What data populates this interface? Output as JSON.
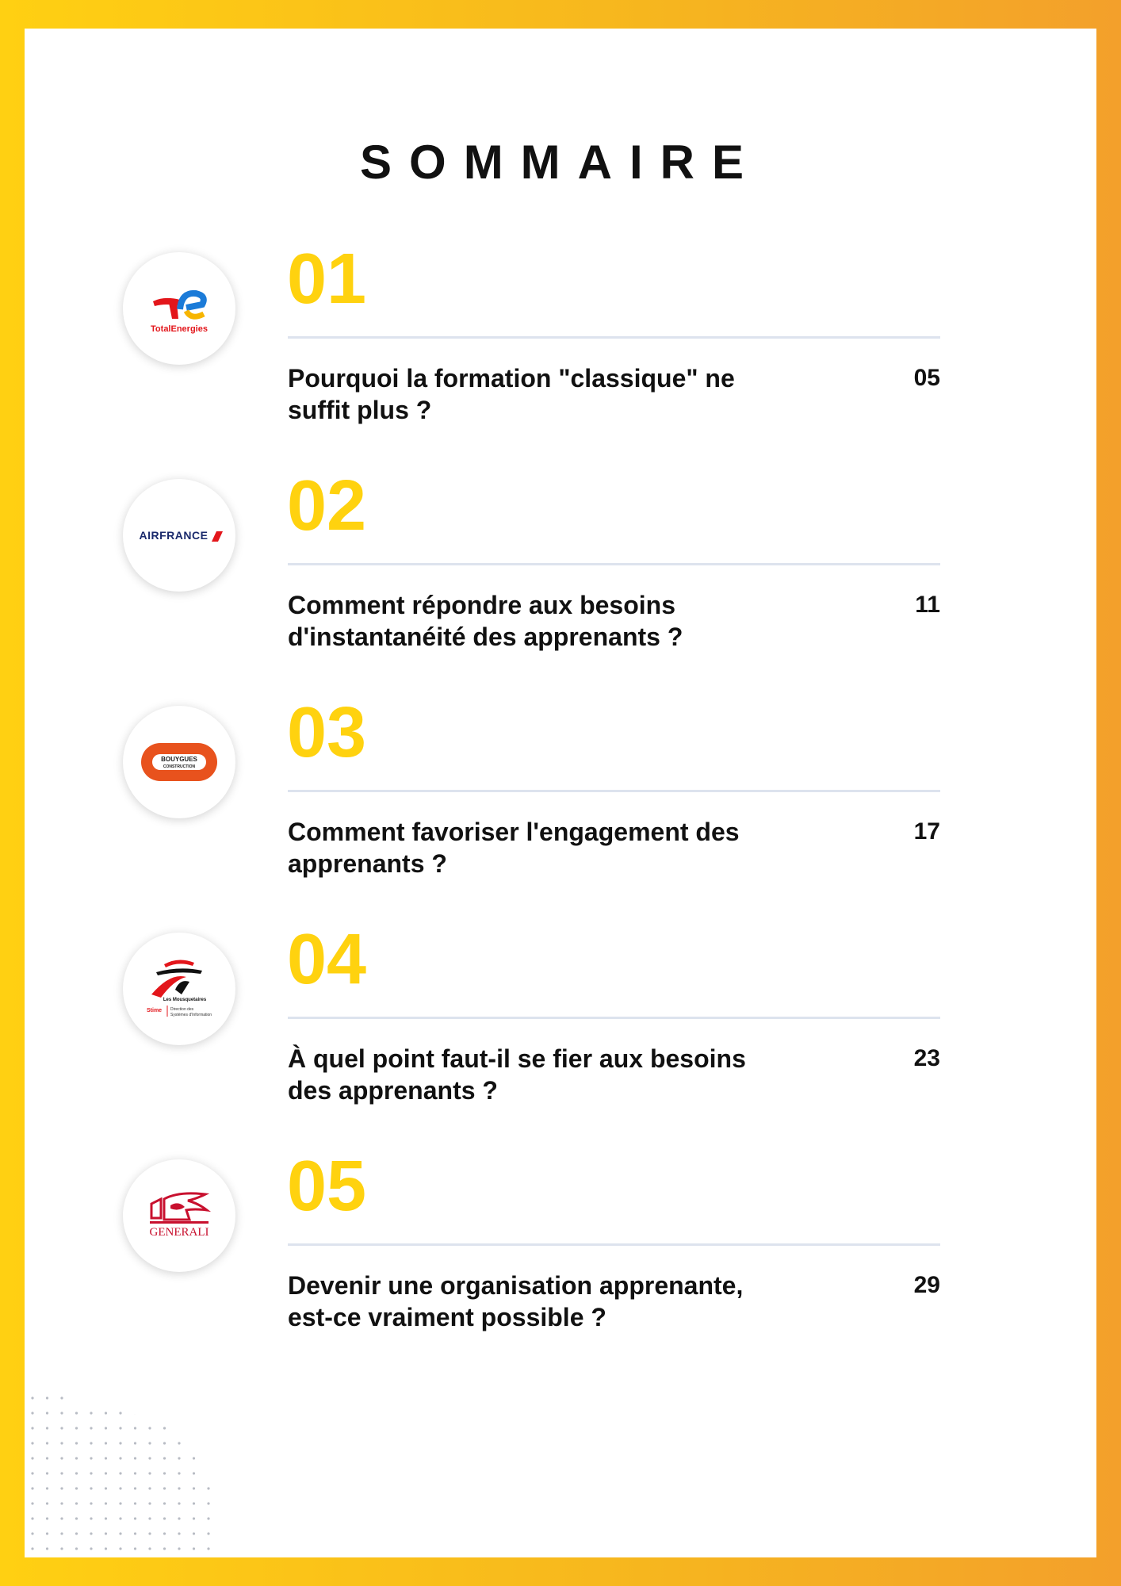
{
  "title": "SOMMAIRE",
  "items": [
    {
      "number": "01",
      "logo": [
        "TotalEnergies"
      ],
      "heading": "Pourquoi la formation \"classique\" ne suffit plus ?",
      "page": "05"
    },
    {
      "number": "02",
      "logo": [
        "AIRFRANCE"
      ],
      "heading": "Comment répondre aux besoins d'instantanéité des apprenants ?",
      "page": "11"
    },
    {
      "number": "03",
      "logo": [
        "BOUYGUES",
        "CONSTRUCTION"
      ],
      "heading": "Comment favoriser l'engagement des apprenants ?",
      "page": "17"
    },
    {
      "number": "04",
      "logo": [
        "Les Mousquetaires",
        "Stime",
        "Direction des",
        "Systèmes d'Information"
      ],
      "heading": "À quel point faut-il se fier aux besoins des apprenants ?",
      "page": "23"
    },
    {
      "number": "05",
      "logo": [
        "GENERALI"
      ],
      "heading": "Devenir une organisation apprenante, est-ce vraiment possible ?",
      "page": "29"
    }
  ]
}
